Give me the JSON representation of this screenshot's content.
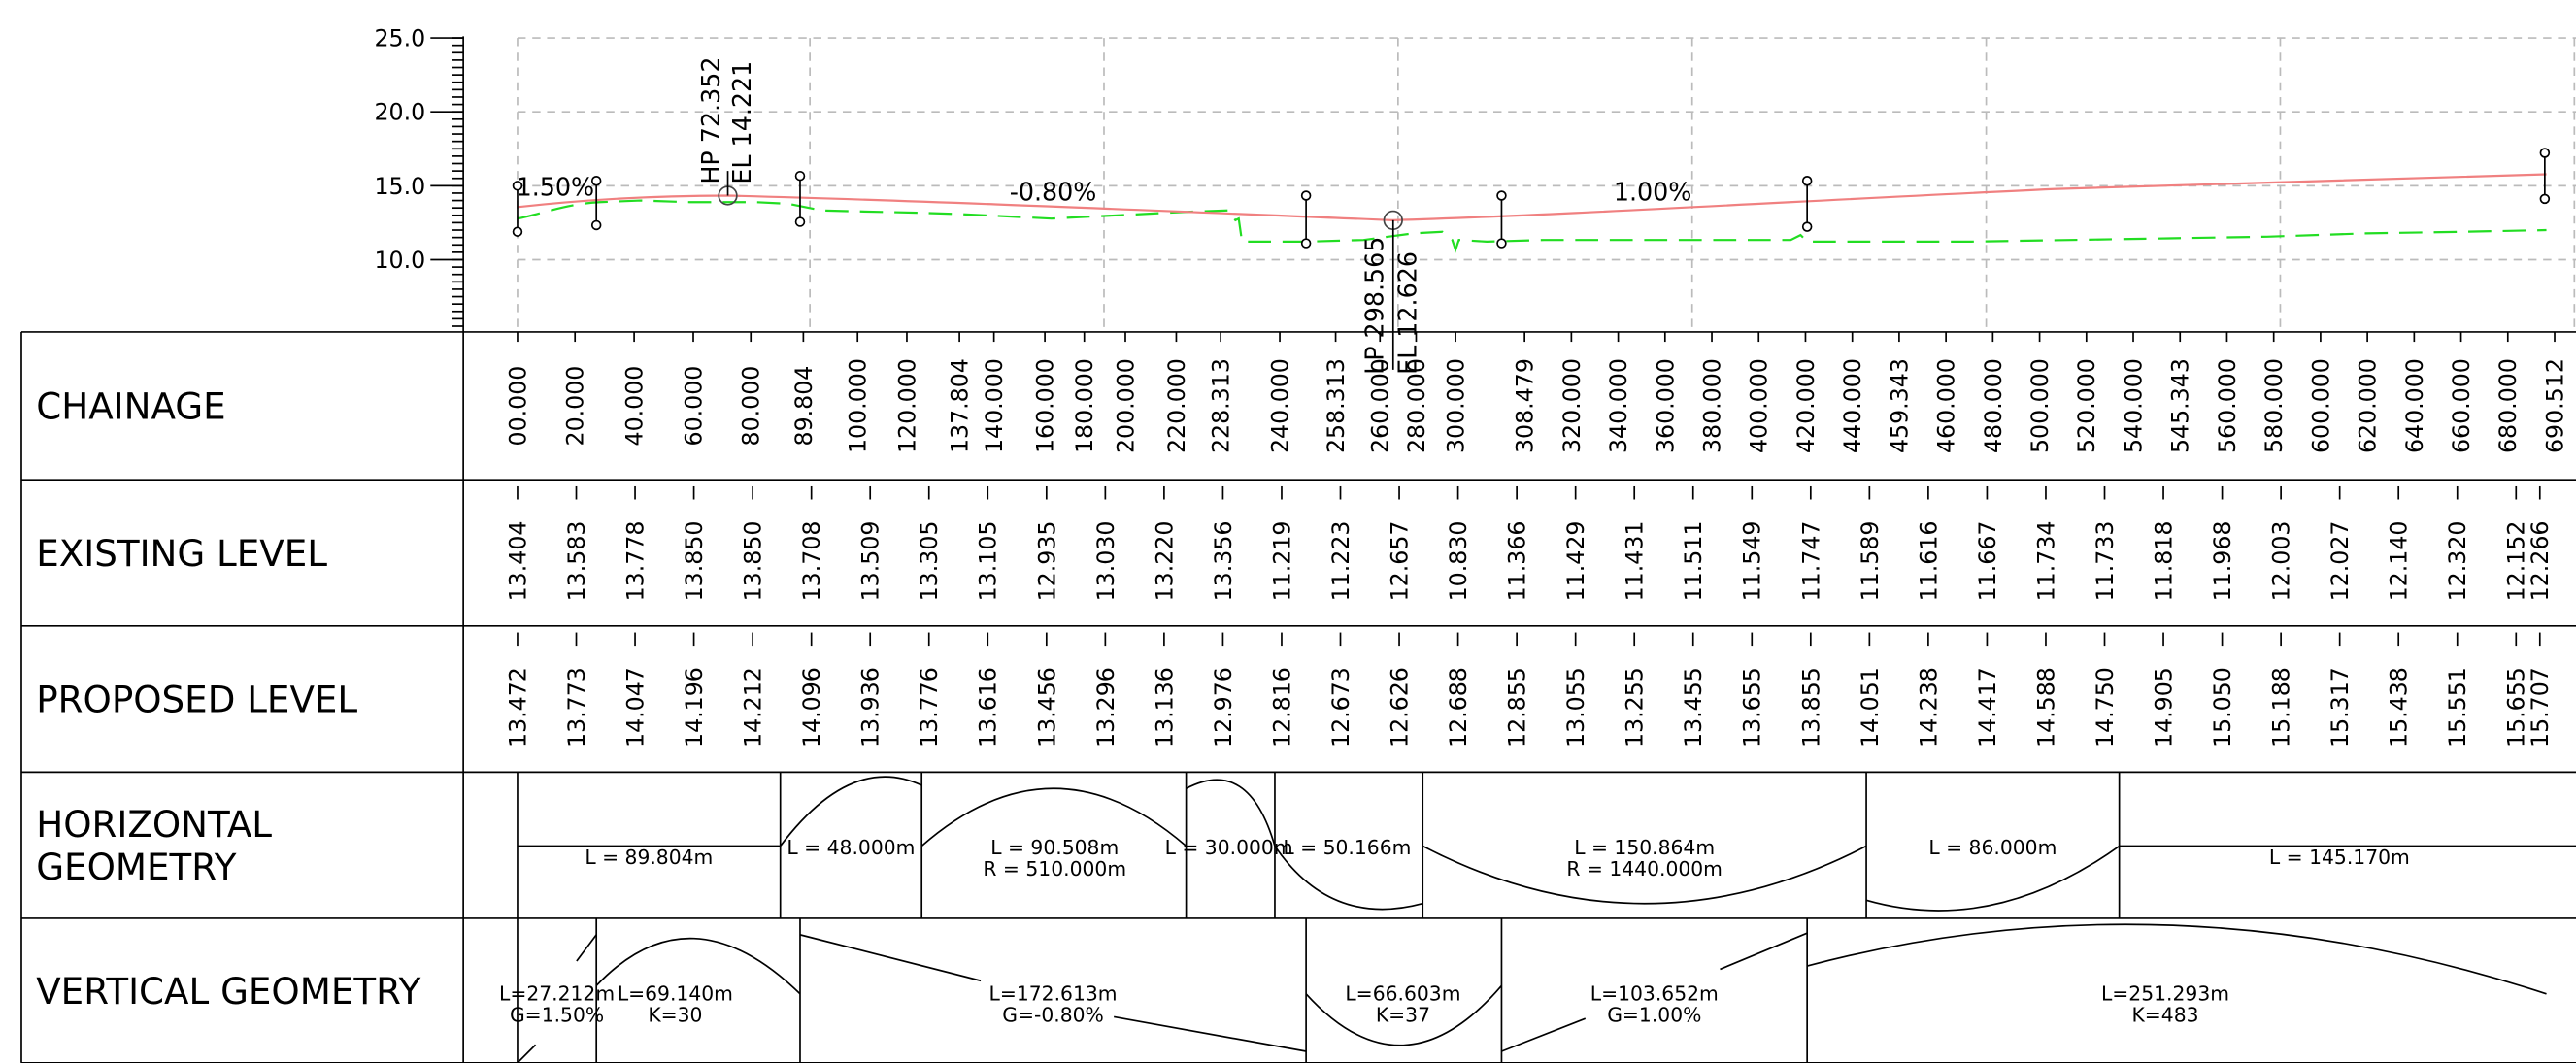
{
  "profile": {
    "axis_labels": [
      "25.0",
      "20.0",
      "15.0",
      "10.0"
    ],
    "grades": [
      "1.50%",
      "-0.80%",
      "1.00%"
    ],
    "high_point": [
      "HP 72.352",
      "EL 14.221"
    ],
    "low_point": [
      "LP 298.565",
      "EL 12.626"
    ]
  },
  "table": {
    "rows": [
      {
        "label": [
          "CHAINAGE"
        ],
        "values": [
          "00.000",
          "20.000",
          "40.000",
          "60.000",
          "80.000",
          "89.804",
          "100.000",
          "120.000",
          "137.804",
          "140.000",
          "160.000",
          "180.000",
          "200.000",
          "220.000",
          "228.313",
          "240.000",
          "258.313",
          "260.000",
          "280.000",
          "300.000",
          "308.479",
          "320.000",
          "340.000",
          "360.000",
          "380.000",
          "400.000",
          "420.000",
          "440.000",
          "459.343",
          "460.000",
          "480.000",
          "500.000",
          "520.000",
          "540.000",
          "545.343",
          "560.000",
          "580.000",
          "600.000",
          "620.000",
          "640.000",
          "660.000",
          "680.000",
          "690.512"
        ]
      },
      {
        "label": [
          "EXISTING LEVEL"
        ],
        "values": [
          "13.404",
          "13.583",
          "13.778",
          "13.850",
          "13.850",
          "13.708",
          "13.509",
          "13.305",
          "13.105",
          "12.935",
          "13.030",
          "13.220",
          "13.356",
          "11.219",
          "11.223",
          "12.657",
          "10.830",
          "11.366",
          "11.429",
          "11.431",
          "11.511",
          "11.549",
          "11.747",
          "11.589",
          "11.616",
          "11.667",
          "11.734",
          "11.733",
          "11.818",
          "11.968",
          "12.003",
          "12.027",
          "12.140",
          "12.320",
          "12.152",
          "12.266"
        ]
      },
      {
        "label": [
          "PROPOSED LEVEL"
        ],
        "values": [
          "13.472",
          "13.773",
          "14.047",
          "14.196",
          "14.212",
          "14.096",
          "13.936",
          "13.776",
          "13.616",
          "13.456",
          "13.296",
          "13.136",
          "12.976",
          "12.816",
          "12.673",
          "12.626",
          "12.688",
          "12.855",
          "13.055",
          "13.255",
          "13.455",
          "13.655",
          "13.855",
          "14.051",
          "14.238",
          "14.417",
          "14.588",
          "14.750",
          "14.905",
          "15.050",
          "15.188",
          "15.317",
          "15.438",
          "15.551",
          "15.655",
          "15.707"
        ]
      },
      {
        "label": [
          "HORIZONTAL",
          "GEOMETRY"
        ],
        "segments": [
          [
            "L = 89.804m"
          ],
          [
            "L = 48.000m"
          ],
          [
            "L = 90.508m",
            "R = 510.000m"
          ],
          [
            "L = 30.000m"
          ],
          [
            "L = 50.166m"
          ],
          [
            "L = 150.864m",
            "R = 1440.000m"
          ],
          [
            "L = 86.000m"
          ],
          [
            "L = 145.170m"
          ]
        ]
      },
      {
        "label": [
          "VERTICAL GEOMETRY"
        ],
        "segments": [
          [
            "L=27.212m",
            "G=1.50%"
          ],
          [
            "L=69.140m",
            "K=30"
          ],
          [
            "L=172.613m",
            "G=-0.80%"
          ],
          [
            "L=66.603m",
            "K=37"
          ],
          [
            "L=103.652m",
            "G=1.00%"
          ],
          [
            "L=251.293m",
            "K=483"
          ]
        ]
      }
    ]
  }
}
